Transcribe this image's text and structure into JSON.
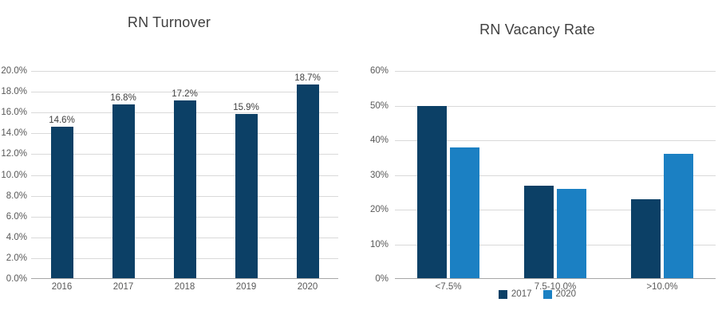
{
  "background": "#ffffff",
  "colors": {
    "dark_navy": "#0c4066",
    "light_blue": "#1b80c3",
    "grid": "#d9d9d9",
    "axis_line": "#a6a6a6",
    "title_text": "#3f3f3f",
    "tick_text": "#595959",
    "value_label_text": "#404040"
  },
  "chart_data": [
    {
      "type": "bar",
      "title": "RN Turnover",
      "categories": [
        "2016",
        "2017",
        "2018",
        "2019",
        "2020"
      ],
      "values": [
        14.6,
        16.8,
        17.2,
        15.9,
        18.7
      ],
      "data_labels": [
        "14.6%",
        "16.8%",
        "17.2%",
        "15.9%",
        "18.7%"
      ],
      "bar_color": "#0c4066",
      "xlabel": "",
      "ylabel": "",
      "ylim": [
        0,
        20
      ],
      "y_tick_step": 2,
      "y_tick_labels_top_to_bottom": [
        "20.0%",
        "18.0%",
        "16.0%",
        "14.0%",
        "12.0%",
        "10.0%",
        "8.0%",
        "6.0%",
        "4.0%",
        "2.0%",
        "0.0%"
      ],
      "grid": true,
      "legend_position": "none"
    },
    {
      "type": "bar",
      "title": "RN Vacancy Rate",
      "categories": [
        "<7.5%",
        "7.5-10.0%",
        ">10.0%"
      ],
      "series": [
        {
          "name": "2017",
          "color": "#0c4066",
          "values": [
            50,
            27,
            23
          ]
        },
        {
          "name": "2020",
          "color": "#1b80c3",
          "values": [
            38,
            26,
            36
          ]
        }
      ],
      "xlabel": "",
      "ylabel": "",
      "ylim": [
        0,
        60
      ],
      "y_tick_step": 10,
      "y_tick_labels_top_to_bottom": [
        "60%",
        "50%",
        "40%",
        "30%",
        "20%",
        "10%",
        "0%"
      ],
      "grid": true,
      "legend_position": "bottom"
    }
  ]
}
